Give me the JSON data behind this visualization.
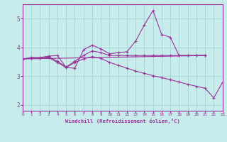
{
  "background_color": "#c8ecec",
  "grid_color": "#a8d8d8",
  "line_color": "#993399",
  "xlabel": "Windchill (Refroidissement éolien,°C)",
  "xlim": [
    0,
    23
  ],
  "ylim": [
    1.8,
    5.5
  ],
  "yticks": [
    2,
    3,
    4,
    5
  ],
  "xticks": [
    0,
    1,
    2,
    3,
    4,
    5,
    6,
    7,
    8,
    9,
    10,
    11,
    12,
    13,
    14,
    15,
    16,
    17,
    18,
    19,
    20,
    21,
    22,
    23
  ],
  "series": [
    {
      "x": [
        0,
        1,
        2,
        3,
        4,
        5,
        6,
        7,
        8,
        9,
        10,
        11,
        12,
        13,
        14,
        15,
        16,
        17,
        18,
        19,
        20,
        21
      ],
      "y": [
        3.6,
        3.65,
        3.65,
        3.7,
        3.72,
        3.3,
        3.28,
        3.92,
        4.08,
        3.95,
        3.78,
        3.82,
        3.85,
        4.22,
        4.78,
        5.28,
        4.45,
        4.35,
        3.72,
        3.72,
        3.72,
        3.72
      ]
    },
    {
      "x": [
        0,
        1,
        2,
        3,
        4,
        5,
        6,
        7,
        8,
        9,
        10,
        11,
        12,
        13,
        14,
        15,
        16,
        17,
        18,
        19,
        20,
        21
      ],
      "y": [
        3.6,
        3.63,
        3.63,
        3.67,
        3.52,
        3.32,
        3.52,
        3.72,
        3.88,
        3.82,
        3.72,
        3.72,
        3.72,
        3.72,
        3.72,
        3.72,
        3.72,
        3.72,
        3.72,
        3.72,
        3.72,
        3.72
      ]
    },
    {
      "x": [
        0,
        21
      ],
      "y": [
        3.6,
        3.72
      ]
    },
    {
      "x": [
        0,
        1,
        2,
        3,
        4,
        5,
        6,
        7,
        8,
        9,
        10,
        11,
        12,
        13,
        14,
        15,
        16,
        17,
        18,
        19,
        20,
        21,
        22,
        23
      ],
      "y": [
        3.6,
        3.62,
        3.62,
        3.64,
        3.48,
        3.3,
        3.48,
        3.6,
        3.68,
        3.62,
        3.48,
        3.38,
        3.28,
        3.18,
        3.1,
        3.02,
        2.95,
        2.88,
        2.8,
        2.72,
        2.65,
        2.58,
        2.25,
        2.78
      ]
    }
  ]
}
